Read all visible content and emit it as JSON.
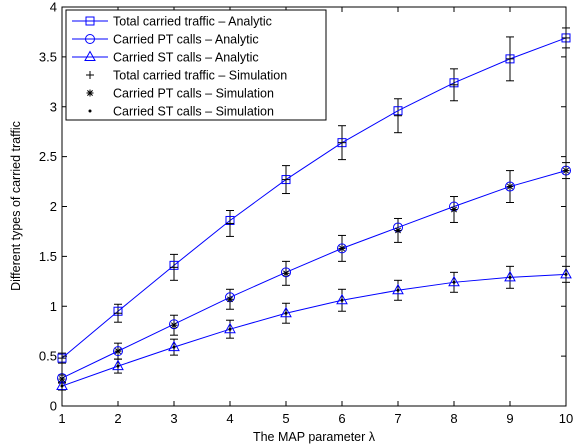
{
  "chart_data": {
    "type": "line",
    "xlabel": "The MAP parameter λ",
    "ylabel": "Different types of carried traffic",
    "xlim": [
      1,
      10
    ],
    "ylim": [
      0,
      4
    ],
    "xticks": [
      "1",
      "2",
      "3",
      "4",
      "5",
      "6",
      "7",
      "8",
      "9",
      "10"
    ],
    "yticks": [
      "0",
      "0.5",
      "1",
      "1.5",
      "2",
      "2.5",
      "3",
      "3.5",
      "4"
    ],
    "x": [
      1,
      2,
      3,
      4,
      5,
      6,
      7,
      8,
      9,
      10
    ],
    "grid": false,
    "legend_position": "top-left",
    "line_color": "#0000ff",
    "marker_color": "#000000",
    "series": [
      {
        "name": "Total carried traffic – Analytic",
        "marker": "square",
        "line": true,
        "values": [
          0.48,
          0.95,
          1.41,
          1.86,
          2.27,
          2.64,
          2.96,
          3.24,
          3.48,
          3.69
        ]
      },
      {
        "name": "Carried PT calls – Analytic",
        "marker": "circle",
        "line": true,
        "values": [
          0.28,
          0.55,
          0.82,
          1.09,
          1.34,
          1.58,
          1.79,
          2.0,
          2.2,
          2.36
        ]
      },
      {
        "name": "Carried ST calls – Analytic",
        "marker": "triangle",
        "line": true,
        "values": [
          0.2,
          0.4,
          0.59,
          0.77,
          0.93,
          1.06,
          1.16,
          1.24,
          1.29,
          1.32
        ]
      },
      {
        "name": "Total carried traffic – Simulation",
        "marker": "plus",
        "line": false,
        "values": [
          0.48,
          0.93,
          1.39,
          1.83,
          2.27,
          2.64,
          2.91,
          3.22,
          3.48,
          3.69
        ],
        "error": [
          0.05,
          0.09,
          0.13,
          0.13,
          0.14,
          0.17,
          0.17,
          0.16,
          0.22,
          0.1
        ]
      },
      {
        "name": "Carried PT calls – Simulation",
        "marker": "asterisk",
        "line": false,
        "values": [
          0.27,
          0.55,
          0.81,
          1.07,
          1.33,
          1.58,
          1.76,
          1.97,
          2.2,
          2.36
        ],
        "error": [
          0.04,
          0.08,
          0.1,
          0.1,
          0.12,
          0.13,
          0.12,
          0.13,
          0.16,
          0.08
        ]
      },
      {
        "name": "Carried ST calls – Simulation",
        "marker": "dot",
        "line": false,
        "values": [
          0.2,
          0.4,
          0.59,
          0.77,
          0.93,
          1.06,
          1.16,
          1.24,
          1.29,
          1.32
        ],
        "error": [
          0.04,
          0.07,
          0.08,
          0.09,
          0.1,
          0.11,
          0.1,
          0.1,
          0.11,
          0.08
        ]
      }
    ]
  }
}
